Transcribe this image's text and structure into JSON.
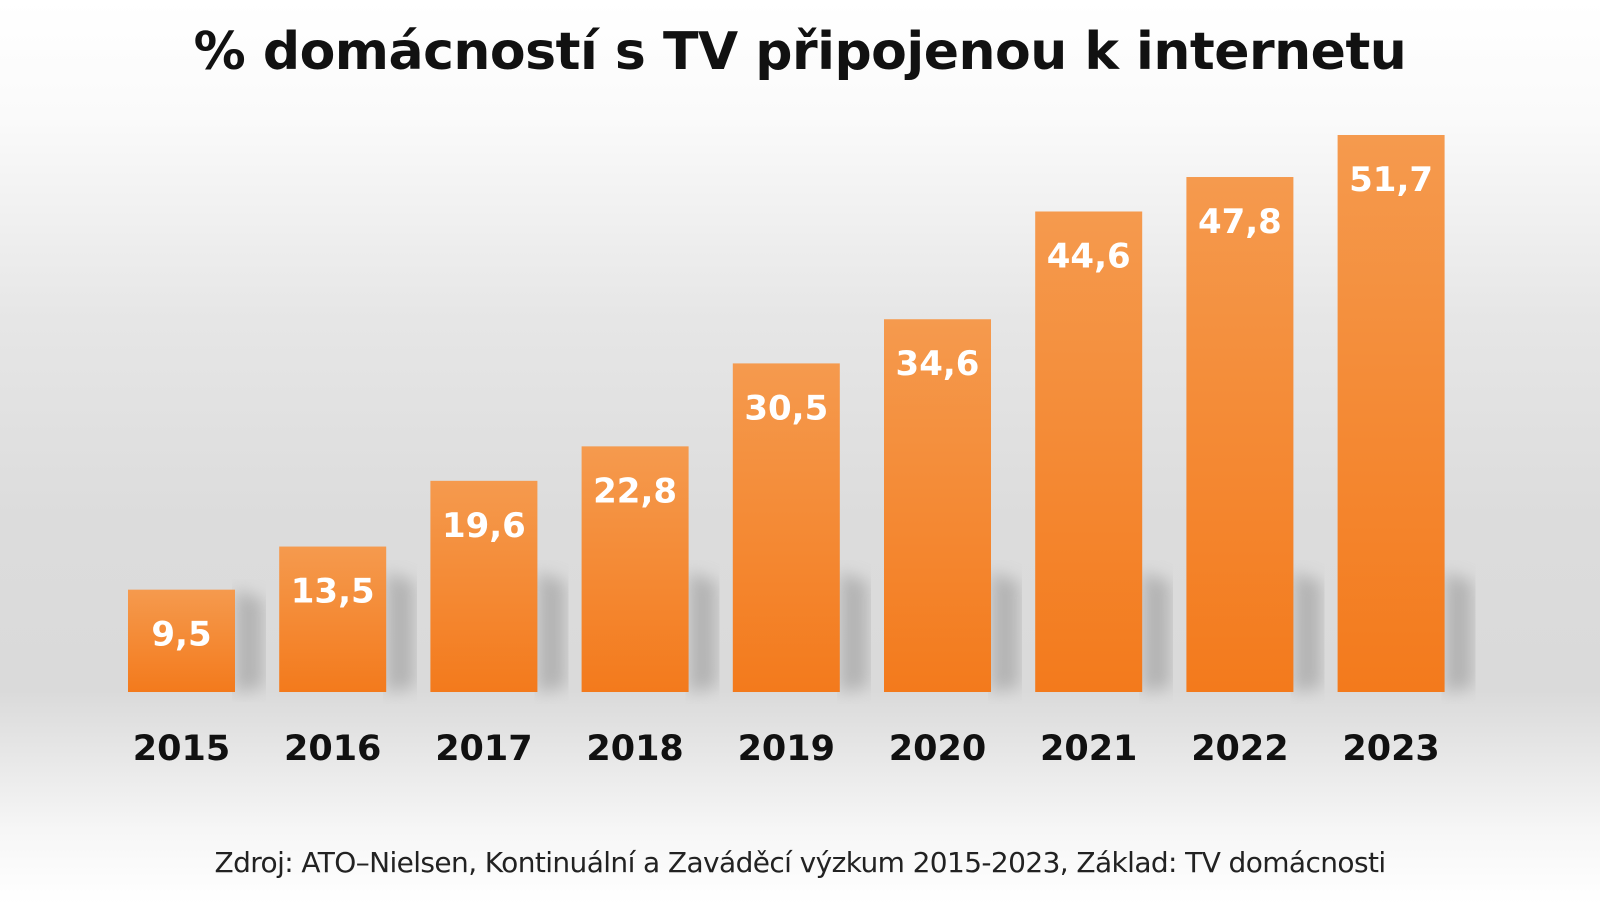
{
  "chart_data": {
    "type": "bar",
    "title": "% domácností s TV připojenou k internetu",
    "categories": [
      "2015",
      "2016",
      "2017",
      "2018",
      "2019",
      "2020",
      "2021",
      "2022",
      "2023"
    ],
    "values": [
      9.5,
      13.5,
      19.6,
      22.8,
      30.5,
      34.6,
      44.6,
      47.8,
      51.7
    ],
    "data_labels": [
      "9,5",
      "13,5",
      "19,6",
      "22,8",
      "30,5",
      "34,6",
      "44,6",
      "47,8",
      "51,7"
    ],
    "xlabel": "",
    "ylabel": "",
    "ylim": [
      0,
      51.7
    ],
    "grid": false,
    "legend": "none",
    "bar_color_top": "#f59a4e",
    "bar_color_bottom": "#f37a1c"
  },
  "source": "Zdroj: ATO–Nielsen, Kontinuální a Zaváděcí výzkum 2015-2023, Základ: TV domácnosti"
}
